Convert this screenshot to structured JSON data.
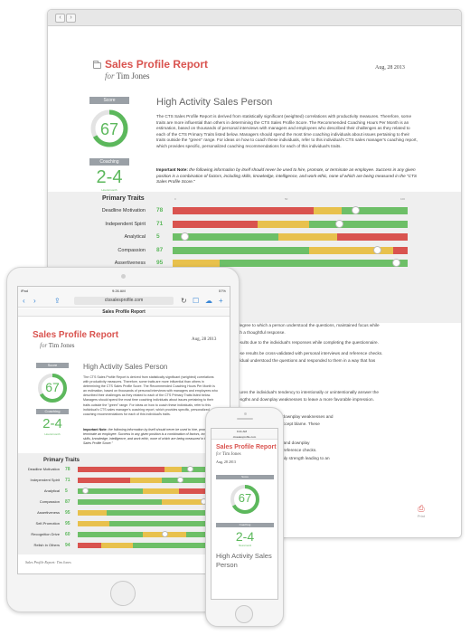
{
  "colors": {
    "accent": "#d9534f",
    "green": "#5cb85c",
    "yellow": "#e8c14d",
    "grey_label": "#9aa0a6"
  },
  "report": {
    "title": "Sales Profile Report",
    "for_prefix": "for",
    "for_name": "Tim Jones",
    "date": "Aug, 28 2013",
    "score_label": "Score",
    "score": "67",
    "score_fraction": 0.67,
    "coaching_label": "Coaching",
    "coaching_range": "2-4",
    "coaching_sub": "Hours/month",
    "headline": "High Activity Sales Person",
    "description": "The CTS Sales Profile Report is derived from statistically significant (weighted) correlations with productivity measures. Therefore, some traits are more influential than others in determining the CTS Sales Profile Score. The Recommended Coaching Hours Per Month is an estimation, based on thousands of personal interviews with managers and employees who described their challenges as they related to each of the CTS Primary Traits listed below. Managers should spend the most time coaching individuals about issues pertaining to their traits outside the \"green\" range. For ideas on how to coach these individuals, refer to this individual's CTS sales manager's coaching report, which provides specific, personalized coaching recommendations for each of this individual's traits.",
    "note_label": "Important Note:",
    "note_text": "the following information by itself should never be used to hire, promote, or terminate an employee. Success in any given position is a combination of factors, including skills, knowledge, intelligence, and work ethic, none of which are being measured in the \"CTS Sales Profile Score.\"",
    "traits_title": "Primary Traits",
    "scale_labels": [
      "0",
      "50",
      "100"
    ],
    "traits": [
      {
        "name": "Deadline Motivation",
        "value": "78",
        "segments": [
          [
            "r",
            0.6
          ],
          [
            "y",
            0.12
          ],
          [
            "g",
            0.28
          ]
        ],
        "pos": 0.78
      },
      {
        "name": "Independent Spirit",
        "value": "71",
        "segments": [
          [
            "r",
            0.36
          ],
          [
            "y",
            0.22
          ],
          [
            "g",
            0.42
          ]
        ],
        "pos": 0.71
      },
      {
        "name": "Analytical",
        "value": "5",
        "segments": [
          [
            "g",
            0.45
          ],
          [
            "y",
            0.25
          ],
          [
            "r",
            0.3
          ]
        ],
        "pos": 0.05
      },
      {
        "name": "Compassion",
        "value": "87",
        "segments": [
          [
            "g",
            0.58
          ],
          [
            "y",
            0.36
          ],
          [
            "r",
            0.06
          ]
        ],
        "pos": 0.87
      },
      {
        "name": "Assertiveness",
        "value": "95",
        "segments": [
          [
            "y",
            0.2
          ],
          [
            "g",
            0.8
          ]
        ],
        "pos": 0.95
      },
      {
        "name": "Self-Promotion",
        "value": "95",
        "segments": [
          [
            "y",
            0.22
          ],
          [
            "g",
            0.78
          ]
        ],
        "pos": 0.95
      },
      {
        "name": "Recognition Drive",
        "value": "60",
        "segments": [
          [
            "g",
            0.45
          ],
          [
            "y",
            0.3
          ],
          [
            "g",
            0.25
          ]
        ],
        "pos": 0.6
      },
      {
        "name": "Relish in Others",
        "value": "94",
        "segments": [
          [
            "r",
            0.16
          ],
          [
            "y",
            0.22
          ],
          [
            "g",
            0.62
          ]
        ],
        "pos": 0.94
      }
    ],
    "right_lines": [
      "degree to which a person understood the questions, maintained focus while",
      "ith a thoughtful response.",
      "esults due to the individual's responses while completing the questionnaire.",
      "ese results be cross-validated with personal interviews and reference checks.",
      "vidual understood the questions and responded to them in a way that has",
      "sures the individual's tendency to intentionally or unintentionally answer the",
      "engths and downplay weaknesses to leave a more favorable impression.",
      "aggerate strengths and downplay weaknesses and",
      "sonal faults and easily accept blame. These",
      "to exaggerate strengths and downplay",
      "personal interviews and reference checks.",
      "esses and emphasize only strength leading to an"
    ],
    "print_label": "Print"
  },
  "tablet": {
    "status_left": "iPad",
    "status_time": "9:26 AM",
    "status_right": "57%",
    "url": "ctssalesprofile.com",
    "header": "Sales Profile Report",
    "footer": "Sales Profile Report: Tim Jones"
  },
  "phone": {
    "status": "9:41 AM",
    "url": "ctssalesprofile.com"
  }
}
